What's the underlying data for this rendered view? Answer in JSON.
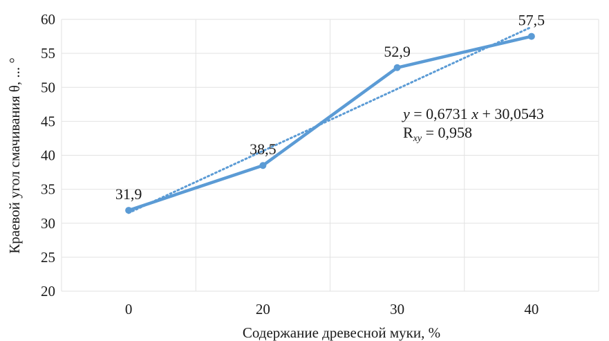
{
  "chart_data": {
    "type": "line",
    "categories": [
      "0",
      "20",
      "30",
      "40"
    ],
    "series": [
      {
        "values": [
          31.9,
          38.5,
          52.9,
          57.5
        ],
        "color": "#5b9bd5"
      }
    ],
    "data_labels": [
      "31,9",
      "38,5",
      "52,9",
      "57,5"
    ],
    "trendline": {
      "style": "dotted",
      "color": "#5b9bd5",
      "slope": 0.6731,
      "intercept": 30.0543,
      "equation_parts": {
        "y": "y",
        "mid": " = 0,6731 ",
        "x": "x",
        "rest": " + 30,0543"
      },
      "r_parts": {
        "r": "R",
        "sub": "xy",
        "rest": " = 0,958"
      }
    },
    "xlabel": "Содержание древесной муки, %",
    "ylabel": "Краевой угол смачивания θ, ... °",
    "ylim": [
      20,
      60
    ],
    "yticks": [
      20,
      25,
      30,
      35,
      40,
      45,
      50,
      55,
      60
    ],
    "grid": true
  }
}
